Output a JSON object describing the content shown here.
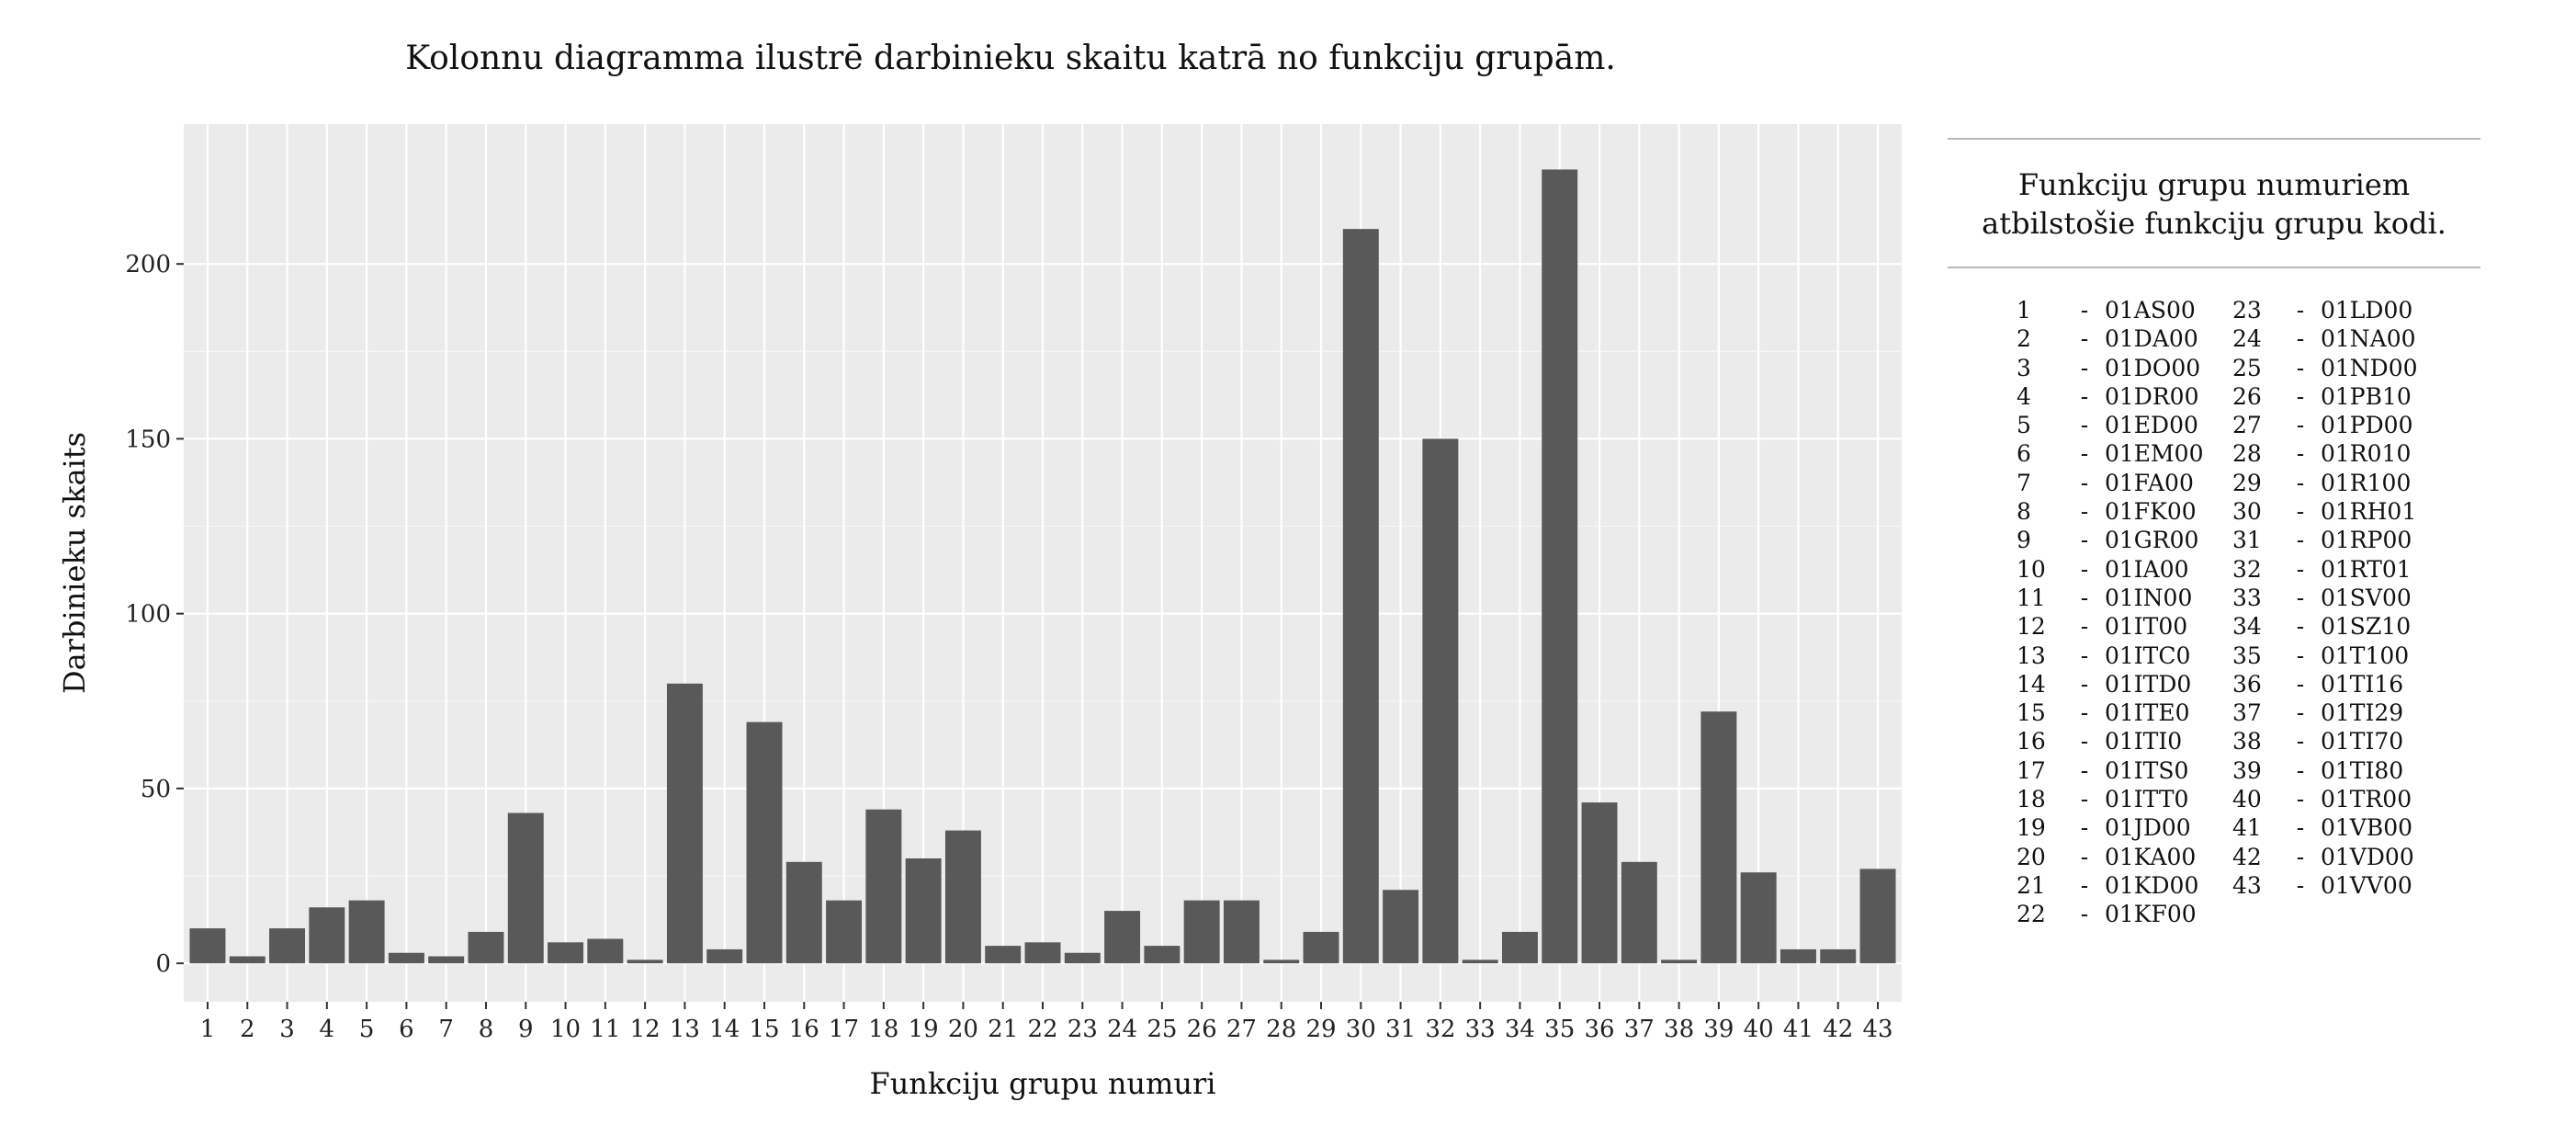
{
  "chart_data": {
    "type": "bar",
    "title": "Kolonnu diagramma ilustrē darbinieku skaitu katrā no funkciju grupām.",
    "xlabel": "Funkciju grupu numuri",
    "ylabel": "Darbinieku skaits",
    "categories": [
      "1",
      "2",
      "3",
      "4",
      "5",
      "6",
      "7",
      "8",
      "9",
      "10",
      "11",
      "12",
      "13",
      "14",
      "15",
      "16",
      "17",
      "18",
      "19",
      "20",
      "21",
      "22",
      "23",
      "24",
      "25",
      "26",
      "27",
      "28",
      "29",
      "30",
      "31",
      "32",
      "33",
      "34",
      "35",
      "36",
      "37",
      "38",
      "39",
      "40",
      "41",
      "42",
      "43"
    ],
    "values": [
      10,
      2,
      10,
      16,
      18,
      3,
      2,
      9,
      43,
      6,
      7,
      1,
      80,
      4,
      69,
      29,
      18,
      44,
      30,
      38,
      5,
      6,
      3,
      15,
      5,
      18,
      18,
      1,
      9,
      210,
      21,
      150,
      1,
      9,
      227,
      46,
      29,
      1,
      72,
      26,
      4,
      4,
      27
    ],
    "yticks": [
      0,
      50,
      100,
      150,
      200
    ],
    "ylim": [
      -11,
      240
    ],
    "grid": true,
    "colors": {
      "bar": "#595959",
      "panel": "#ebebeb",
      "grid_major": "#ffffff"
    }
  },
  "legend": {
    "title": "Funkciju grupu numuriem atbilstošie funkciju grupu kodi.",
    "separator": "-",
    "entries": [
      {
        "num": "1",
        "code": "01AS00"
      },
      {
        "num": "2",
        "code": "01DA00"
      },
      {
        "num": "3",
        "code": "01DO00"
      },
      {
        "num": "4",
        "code": "01DR00"
      },
      {
        "num": "5",
        "code": "01ED00"
      },
      {
        "num": "6",
        "code": "01EM00"
      },
      {
        "num": "7",
        "code": "01FA00"
      },
      {
        "num": "8",
        "code": "01FK00"
      },
      {
        "num": "9",
        "code": "01GR00"
      },
      {
        "num": "10",
        "code": "01IA00"
      },
      {
        "num": "11",
        "code": "01IN00"
      },
      {
        "num": "12",
        "code": "01IT00"
      },
      {
        "num": "13",
        "code": "01ITC0"
      },
      {
        "num": "14",
        "code": "01ITD0"
      },
      {
        "num": "15",
        "code": "01ITE0"
      },
      {
        "num": "16",
        "code": "01ITI0"
      },
      {
        "num": "17",
        "code": "01ITS0"
      },
      {
        "num": "18",
        "code": "01ITT0"
      },
      {
        "num": "19",
        "code": "01JD00"
      },
      {
        "num": "20",
        "code": "01KA00"
      },
      {
        "num": "21",
        "code": "01KD00"
      },
      {
        "num": "22",
        "code": "01KF00"
      },
      {
        "num": "23",
        "code": "01LD00"
      },
      {
        "num": "24",
        "code": "01NA00"
      },
      {
        "num": "25",
        "code": "01ND00"
      },
      {
        "num": "26",
        "code": "01PB10"
      },
      {
        "num": "27",
        "code": "01PD00"
      },
      {
        "num": "28",
        "code": "01R010"
      },
      {
        "num": "29",
        "code": "01R100"
      },
      {
        "num": "30",
        "code": "01RH01"
      },
      {
        "num": "31",
        "code": "01RP00"
      },
      {
        "num": "32",
        "code": "01RT01"
      },
      {
        "num": "33",
        "code": "01SV00"
      },
      {
        "num": "34",
        "code": "01SZ10"
      },
      {
        "num": "35",
        "code": "01T100"
      },
      {
        "num": "36",
        "code": "01TI16"
      },
      {
        "num": "37",
        "code": "01TI29"
      },
      {
        "num": "38",
        "code": "01TI70"
      },
      {
        "num": "39",
        "code": "01TI80"
      },
      {
        "num": "40",
        "code": "01TR00"
      },
      {
        "num": "41",
        "code": "01VB00"
      },
      {
        "num": "42",
        "code": "01VD00"
      },
      {
        "num": "43",
        "code": "01VV00"
      }
    ]
  }
}
